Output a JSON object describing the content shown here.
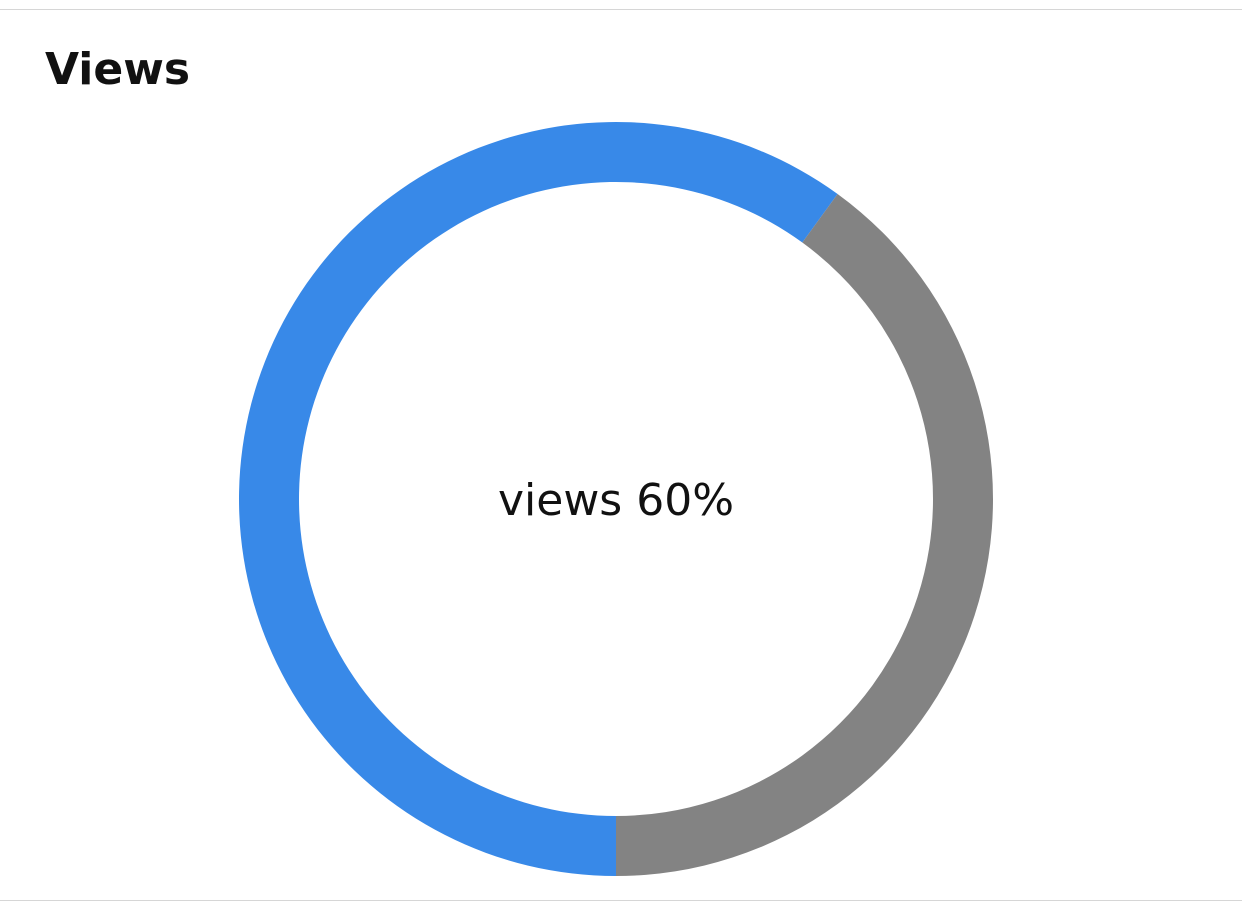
{
  "chart_data": {
    "type": "donut",
    "title": "Views",
    "center_label": "views 60%",
    "values": [
      60,
      40
    ],
    "colors": [
      "#3889e8",
      "#838383"
    ]
  }
}
